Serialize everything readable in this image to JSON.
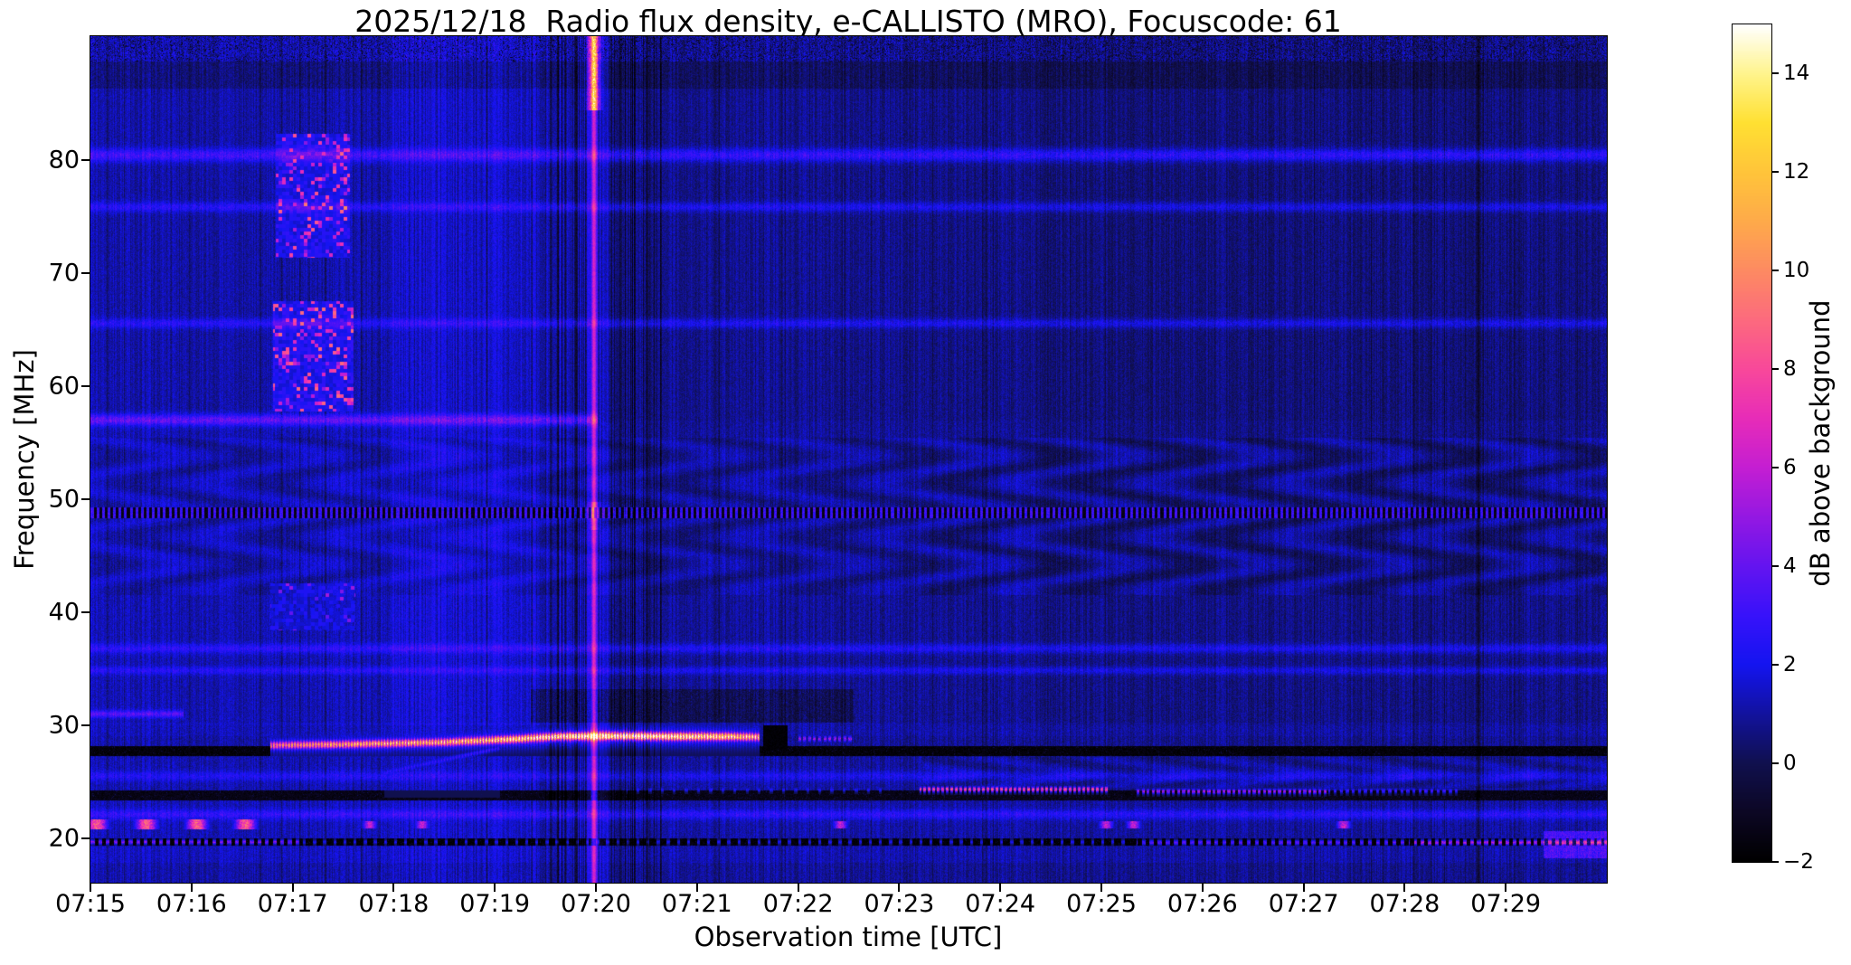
{
  "chart_data": {
    "type": "heatmap",
    "title": "2025/12/18  Radio flux density, e-CALLISTO (MRO), Focuscode: 61",
    "date": "2025/12/18",
    "instrument": "e-CALLISTO (MRO)",
    "focuscode": "61",
    "xlabel": "Observation time [UTC]",
    "ylabel": "Frequency [MHz]",
    "x_axis": {
      "time_range": [
        "07:15",
        "07:30"
      ],
      "tick_interval_min": 1,
      "ticks": [
        {
          "label": "07:15",
          "t": 0
        },
        {
          "label": "07:16",
          "t": 1
        },
        {
          "label": "07:17",
          "t": 2
        },
        {
          "label": "07:18",
          "t": 3
        },
        {
          "label": "07:19",
          "t": 4
        },
        {
          "label": "07:20",
          "t": 5
        },
        {
          "label": "07:21",
          "t": 6
        },
        {
          "label": "07:22",
          "t": 7
        },
        {
          "label": "07:23",
          "t": 8
        },
        {
          "label": "07:24",
          "t": 9
        },
        {
          "label": "07:25",
          "t": 10
        },
        {
          "label": "07:26",
          "t": 11
        },
        {
          "label": "07:27",
          "t": 12
        },
        {
          "label": "07:28",
          "t": 13
        },
        {
          "label": "07:29",
          "t": 14
        }
      ]
    },
    "y_axis": {
      "range_mhz": [
        16.1,
        91.0
      ],
      "ticks": [
        {
          "label": "80",
          "f": 80
        },
        {
          "label": "70",
          "f": 70
        },
        {
          "label": "60",
          "f": 60
        },
        {
          "label": "50",
          "f": 50
        },
        {
          "label": "40",
          "f": 40
        },
        {
          "label": "30",
          "f": 30
        },
        {
          "label": "20",
          "f": 20
        }
      ]
    },
    "colorbar": {
      "label": "dB above background",
      "range": [
        -2,
        15
      ],
      "ticks": [
        {
          "label": "14",
          "v": 14
        },
        {
          "label": "12",
          "v": 12
        },
        {
          "label": "10",
          "v": 10
        },
        {
          "label": "8",
          "v": 8
        },
        {
          "label": "6",
          "v": 6
        },
        {
          "label": "4",
          "v": 4
        },
        {
          "label": "2",
          "v": 2
        },
        {
          "label": "0",
          "v": 0
        },
        {
          "label": "−2",
          "v": -2
        }
      ],
      "stops": [
        {
          "v": -2,
          "c": "#000000"
        },
        {
          "v": -1,
          "c": "#0c0724"
        },
        {
          "v": 0,
          "c": "#10104e"
        },
        {
          "v": 1,
          "c": "#12129e"
        },
        {
          "v": 2,
          "c": "#1414f0"
        },
        {
          "v": 3,
          "c": "#3812fa"
        },
        {
          "v": 4,
          "c": "#6414f0"
        },
        {
          "v": 5,
          "c": "#9418e2"
        },
        {
          "v": 6,
          "c": "#c41ed2"
        },
        {
          "v": 7,
          "c": "#e72cb8"
        },
        {
          "v": 8,
          "c": "#f8489a"
        },
        {
          "v": 9,
          "c": "#fc6a7e"
        },
        {
          "v": 10,
          "c": "#fd8a62"
        },
        {
          "v": 11,
          "c": "#feaa4a"
        },
        {
          "v": 12,
          "c": "#ffc43a"
        },
        {
          "v": 13,
          "c": "#ffe032"
        },
        {
          "v": 14,
          "c": "#fff48c"
        },
        {
          "v": 15,
          "c": "#ffffff"
        }
      ]
    },
    "background": {
      "base_level_db": 0.95,
      "column_striping": 0.5,
      "pixel_noise": 1.05,
      "left_bright_until_min": 2.98,
      "left_boost_db": 0.3,
      "prestripe_window_min": [
        2.98,
        4.72
      ],
      "prestripe_boost_db": 0.7,
      "right_dim_from_min": 8.23,
      "right_dim_db": -0.12,
      "far_right_dim_from_min": 9.35,
      "far_right_dim_db": -0.28,
      "herringbone": {
        "f": [
          41.5,
          55.5
        ],
        "amp": 0.45,
        "amp_right": 0.62
      },
      "top_speckle_above_mhz": 88.8
    },
    "features": [
      {
        "id": "speckle-rfi-upper",
        "type": "speckle",
        "t": [
          1.83,
          2.56
        ],
        "f": [
          71.4,
          82.4
        ],
        "base": 2.0,
        "hot_chance": 0.16,
        "hot": [
          4.5,
          8.5
        ]
      },
      {
        "id": "speckle-rfi-mid",
        "type": "speckle",
        "t": [
          1.8,
          2.6
        ],
        "f": [
          57.8,
          67.6
        ],
        "base": 2.0,
        "hot_chance": 0.2,
        "hot": [
          4.5,
          9.0
        ]
      },
      {
        "id": "speckle-rfi-low",
        "type": "speckle",
        "t": [
          1.78,
          2.62
        ],
        "f": [
          38.4,
          42.6
        ],
        "base": 1.6,
        "hot_chance": 0.06,
        "hot": [
          3.5,
          5.5
        ]
      },
      {
        "id": "line-57mhz",
        "type": "hline",
        "f": 57.05,
        "t": [
          0,
          5.02
        ],
        "amp": 2.9,
        "sigma": 0.35
      },
      {
        "id": "line-31mhz",
        "type": "hline",
        "f": 31.0,
        "t": [
          0,
          0.92
        ],
        "amp": 2.5,
        "sigma": 0.22
      },
      {
        "id": "line-80mhz",
        "type": "hline",
        "f": 80.5,
        "t": [
          0,
          15
        ],
        "amp": 2.2,
        "sigma": 0.4
      },
      {
        "id": "line-76mhz",
        "type": "hline",
        "f": 75.9,
        "t": [
          0,
          15
        ],
        "amp": 1.5,
        "sigma": 0.3
      },
      {
        "id": "line-65mhz",
        "type": "hline",
        "f": 65.6,
        "t": [
          0,
          15
        ],
        "amp": 1.5,
        "sigma": 0.3
      },
      {
        "id": "line-37mhz",
        "type": "hline",
        "f": 36.8,
        "t": [
          0,
          15
        ],
        "amp": 1.5,
        "sigma": 0.3
      },
      {
        "id": "line-35mhz",
        "type": "hline",
        "f": 34.85,
        "t": [
          0,
          15
        ],
        "amp": 1.3,
        "sigma": 0.25
      },
      {
        "id": "line-25mhz",
        "type": "hline",
        "f": 25.5,
        "t": [
          0,
          15
        ],
        "amp": 1.2,
        "sigma": 0.3
      },
      {
        "id": "line-22mhz",
        "type": "hline",
        "f": 22.1,
        "t": [
          0,
          15
        ],
        "amp": 1.6,
        "sigma": 0.3
      },
      {
        "id": "band-28mhz-black",
        "type": "black_band",
        "f": [
          27.25,
          28.18
        ],
        "t": [
          0,
          15
        ],
        "value": -1.7
      },
      {
        "id": "band-24mhz-black",
        "type": "black_band",
        "f": [
          23.38,
          24.22
        ],
        "t": [
          0,
          15
        ],
        "value": -1.4
      },
      {
        "id": "band-19mhz-black",
        "type": "black_band",
        "f": [
          19.35,
          19.97
        ],
        "t": [
          0,
          15
        ],
        "value": -1.8
      },
      {
        "id": "burst-band-29mhz",
        "type": "drift_band",
        "sigma": 0.22,
        "points": [
          [
            1.78,
            28.22,
            8.5
          ],
          [
            2.6,
            28.32,
            10.5
          ],
          [
            3.5,
            28.5,
            11.0
          ],
          [
            4.25,
            28.8,
            12.5
          ],
          [
            4.62,
            29.0,
            14.5
          ],
          [
            5.15,
            29.05,
            15.5
          ],
          [
            5.75,
            29.0,
            14.5
          ],
          [
            6.3,
            29.0,
            13.0
          ],
          [
            6.62,
            28.95,
            11.0
          ]
        ]
      },
      {
        "id": "drift-precursor",
        "type": "drift_band",
        "sigma": 0.16,
        "points": [
          [
            2.9,
            25.8,
            2.4
          ],
          [
            4.05,
            28.0,
            2.8
          ]
        ]
      },
      {
        "id": "burst-tail-pink",
        "type": "dash_line",
        "f": 28.8,
        "t": [
          7.0,
          7.55
        ],
        "amp": 6.2,
        "period": 0.05,
        "duty": 0.55,
        "sigma": 0.18
      },
      {
        "id": "line-24-bright-dashes",
        "type": "dash_line",
        "f": 24.33,
        "t": [
          8.2,
          10.08
        ],
        "amp": 9.5,
        "period": 0.045,
        "duty": 0.6,
        "sigma": 0.16
      },
      {
        "id": "line-24-dim-dashes",
        "type": "dash_line",
        "f": 24.15,
        "t": [
          10.33,
          12.25
        ],
        "amp": 6.3,
        "period": 0.05,
        "duty": 0.6,
        "sigma": 0.15
      },
      {
        "id": "line-24-faint-dashes",
        "type": "dash_line",
        "f": 24.2,
        "t": [
          12.25,
          13.55
        ],
        "amp": 3.8,
        "period": 0.06,
        "duty": 0.5,
        "sigma": 0.14
      },
      {
        "id": "line-24-early-dots",
        "type": "dash_line",
        "f": 24.3,
        "t": [
          5.3,
          7.9
        ],
        "amp": 2.8,
        "period": 0.12,
        "duty": 0.25,
        "sigma": 0.13
      },
      {
        "id": "line-19-left-dashes",
        "type": "dash_line",
        "f": 19.66,
        "t": [
          0,
          2.1
        ],
        "amp": 5.5,
        "period": 0.075,
        "duty": 0.5,
        "sigma": 0.14
      },
      {
        "id": "line-19-mid-dots",
        "type": "dash_line",
        "f": 19.66,
        "t": [
          2.1,
          10.3
        ],
        "amp": 2.6,
        "period": 0.1,
        "duty": 0.3,
        "sigma": 0.13
      },
      {
        "id": "line-19-right-dashes",
        "type": "dash_line",
        "f": 19.62,
        "t": [
          10.35,
          13.05
        ],
        "amp": 4.6,
        "period": 0.08,
        "duty": 0.5,
        "sigma": 0.14
      },
      {
        "id": "line-19-bright-right",
        "type": "dash_line",
        "f": 19.62,
        "t": [
          13.1,
          15
        ],
        "amp": 6.6,
        "period": 0.07,
        "duty": 0.55,
        "sigma": 0.15
      },
      {
        "id": "blobs-21mhz",
        "type": "blobs",
        "f": [
          20.75,
          21.65
        ],
        "centers": [
          0.06,
          0.55,
          1.05,
          1.53
        ],
        "amp": 8.4,
        "sigma_t": 0.07
      },
      {
        "id": "blobs-21mhz-small",
        "type": "blobs",
        "f": [
          20.9,
          21.5
        ],
        "centers": [
          2.76,
          3.28,
          7.42,
          10.05,
          10.32,
          12.4
        ],
        "amp": 6.0,
        "sigma_t": 0.045
      },
      {
        "id": "smear-bottom-right",
        "type": "bright_rect",
        "t": [
          14.38,
          15
        ],
        "f": [
          18.2,
          20.6
        ],
        "amp": 2.3
      },
      {
        "id": "burst-tail-black-gap",
        "type": "black_rect",
        "t": [
          6.65,
          6.9
        ],
        "f": [
          27.8,
          30.0
        ],
        "value": -1.9
      },
      {
        "id": "line-49-dark-dashes",
        "type": "dash_line_dark",
        "f": 48.82,
        "t": [
          0,
          15
        ],
        "amp": 3.0,
        "dark": -1.8,
        "period": 0.055,
        "duty": 0.5,
        "sigma": 0.22
      },
      {
        "id": "vstripe-0720",
        "type": "vstripe",
        "t": 4.98,
        "core_amp": 4.3,
        "core_sigma": 0.02,
        "halo_amp": 1.1,
        "halo_sigma": 0.1,
        "top_amp": 7.0,
        "top_f": 84.5,
        "mid_amp": 2.2,
        "mid_f": [
          47.3,
          49.8
        ]
      },
      {
        "id": "dark-columns-0720",
        "type": "dark_cols",
        "t": [
          4.5,
          5.65
        ],
        "chance": 0.4,
        "depth": 1.6
      },
      {
        "id": "dark-striated-30-33",
        "type": "dark_rect",
        "t": [
          4.35,
          7.55
        ],
        "f": [
          30.2,
          33.2
        ],
        "depth": 0.9
      },
      {
        "id": "dark-band-87mhz",
        "type": "dark_rect",
        "t": [
          0,
          15
        ],
        "f": [
          86.4,
          88.8
        ],
        "depth": 0.55
      },
      {
        "id": "dark-vline-0728",
        "type": "dark_vline",
        "t": 13.73,
        "depth": 1.2,
        "sigma": 0.013
      }
    ]
  }
}
